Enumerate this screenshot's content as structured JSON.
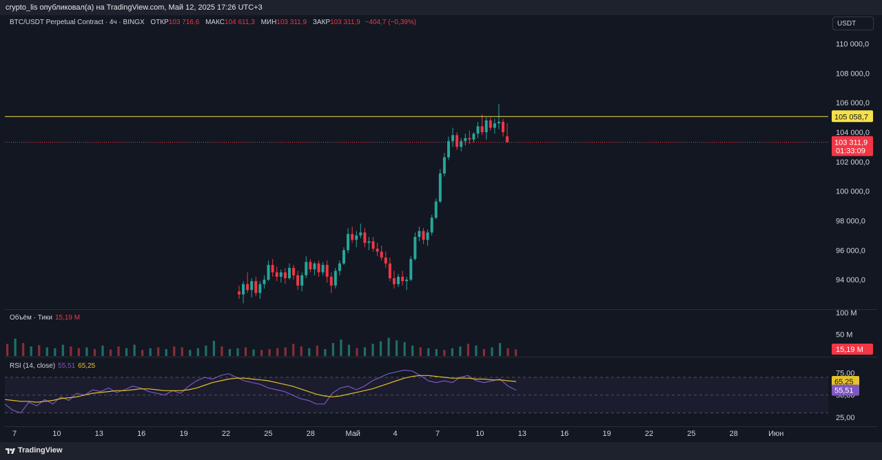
{
  "header": {
    "text": "crypto_lis опубликовал(а) на TradingView.com, Май 12, 2025 17:26 UTC+3"
  },
  "legend": {
    "symbol": "BTC/USDT Perpetual Contract · 4ч · BINGX",
    "open_label": "ОТКР",
    "open": "103 716,6",
    "high_label": "МАКС",
    "high": "104 611,3",
    "low_label": "МИН",
    "low": "103 311,9",
    "close_label": "ЗАКР",
    "close": "103 311,9",
    "change": "−404,7 (−0,39%)"
  },
  "currency_button": "USDT",
  "price_axis": {
    "ticks": [
      "110 000,0",
      "108 000,0",
      "106 000,0",
      "104 000,0",
      "102 000,0",
      "100 000,0",
      "98 000,0",
      "96 000,0",
      "94 000,0"
    ],
    "tick_values": [
      110000,
      108000,
      106000,
      104000,
      102000,
      100000,
      98000,
      96000,
      94000
    ],
    "level_label": "105 058,7",
    "level_value": 105058.7,
    "last_price_label": "103 311,9",
    "last_price_value": 103311.9,
    "countdown": "01:33:09"
  },
  "volume": {
    "legend_label": "Объём · Тики",
    "legend_value": "15,19 M",
    "axis_ticks": [
      "100 M",
      "50 M"
    ],
    "axis_values": [
      100,
      50
    ],
    "last_label": "15,19 M"
  },
  "rsi": {
    "legend_label": "RSI (14, close)",
    "rsi_value": "55,51",
    "ma_value": "65,25",
    "axis_ticks": [
      "75,00",
      "50,00",
      "25,00"
    ],
    "axis_values": [
      75,
      50,
      25
    ]
  },
  "time_axis": {
    "labels": [
      "7",
      "10",
      "13",
      "16",
      "19",
      "22",
      "25",
      "28",
      "Май",
      "4",
      "7",
      "10",
      "13",
      "16",
      "19",
      "22",
      "25",
      "28",
      "Июн"
    ]
  },
  "footer": {
    "brand": "TradingView"
  },
  "colors": {
    "up": "#26a69a",
    "down": "#f23645",
    "level": "#f5e14a",
    "rsi": "#7e57c2",
    "rsi_ma": "#e6c229",
    "bg": "#131722"
  },
  "chart_data": {
    "type": "candlestick",
    "interval": "4h",
    "price_range": [
      92000,
      111000
    ],
    "volume_range": [
      0,
      100
    ],
    "rsi_range": [
      15,
      90
    ],
    "candles_ohlc": [
      [
        93200,
        93600,
        92700,
        93000
      ],
      [
        93000,
        93900,
        92400,
        93700
      ],
      [
        93700,
        94500,
        93100,
        93300
      ],
      [
        93300,
        94100,
        92800,
        93900
      ],
      [
        93900,
        94200,
        92900,
        93100
      ],
      [
        93100,
        93900,
        92700,
        93700
      ],
      [
        93700,
        94300,
        93400,
        94000
      ],
      [
        94000,
        95300,
        93900,
        95000
      ],
      [
        95000,
        95400,
        94200,
        94500
      ],
      [
        94500,
        94900,
        93900,
        94200
      ],
      [
        94200,
        94700,
        93800,
        94500
      ],
      [
        94500,
        94800,
        93700,
        94100
      ],
      [
        94100,
        95100,
        94000,
        94800
      ],
      [
        94800,
        95000,
        94000,
        94300
      ],
      [
        94300,
        94600,
        93300,
        93600
      ],
      [
        93600,
        94500,
        93200,
        94300
      ],
      [
        94300,
        95600,
        94100,
        95200
      ],
      [
        95200,
        95400,
        94500,
        94700
      ],
      [
        94700,
        95200,
        94300,
        95100
      ],
      [
        95100,
        95300,
        94200,
        94500
      ],
      [
        94500,
        95200,
        94300,
        95000
      ],
      [
        95000,
        95300,
        93800,
        94200
      ],
      [
        94200,
        94500,
        93100,
        93600
      ],
      [
        93600,
        94800,
        93400,
        94600
      ],
      [
        94600,
        95300,
        94300,
        95100
      ],
      [
        95100,
        96200,
        95000,
        96000
      ],
      [
        96000,
        97500,
        95800,
        97100
      ],
      [
        97100,
        97600,
        96500,
        96700
      ],
      [
        96700,
        97300,
        96200,
        97000
      ],
      [
        97000,
        97800,
        96800,
        97200
      ],
      [
        97200,
        97500,
        96200,
        96500
      ],
      [
        96500,
        96900,
        96000,
        96600
      ],
      [
        96600,
        96900,
        95900,
        96100
      ],
      [
        96100,
        96500,
        95600,
        95900
      ],
      [
        95900,
        96300,
        95300,
        95500
      ],
      [
        95500,
        95900,
        94800,
        95100
      ],
      [
        95100,
        95500,
        93900,
        94100
      ],
      [
        94100,
        94600,
        93400,
        93700
      ],
      [
        93700,
        94400,
        93500,
        94200
      ],
      [
        94200,
        94600,
        93600,
        93900
      ],
      [
        93900,
        94200,
        93300,
        94000
      ],
      [
        94000,
        95600,
        93900,
        95400
      ],
      [
        95400,
        97200,
        95300,
        96900
      ],
      [
        96900,
        97600,
        96600,
        97300
      ],
      [
        97300,
        97500,
        96400,
        96700
      ],
      [
        96700,
        97400,
        96300,
        97200
      ],
      [
        97200,
        98400,
        97000,
        98200
      ],
      [
        98200,
        99500,
        98100,
        99300
      ],
      [
        99300,
        101500,
        99200,
        101200
      ],
      [
        101200,
        102600,
        101000,
        102300
      ],
      [
        102300,
        103700,
        102100,
        103400
      ],
      [
        103400,
        104300,
        103000,
        103800
      ],
      [
        103800,
        104000,
        102800,
        103000
      ],
      [
        103000,
        103600,
        102700,
        103400
      ],
      [
        103400,
        103900,
        103100,
        103600
      ],
      [
        103600,
        104100,
        103200,
        103500
      ],
      [
        103500,
        104000,
        103300,
        103900
      ],
      [
        103900,
        104700,
        103600,
        104400
      ],
      [
        104400,
        105200,
        103800,
        104000
      ],
      [
        104000,
        105000,
        103500,
        104800
      ],
      [
        104800,
        105000,
        104100,
        104300
      ],
      [
        104300,
        104900,
        103900,
        104600
      ],
      [
        104600,
        105900,
        104200,
        104700
      ],
      [
        104700,
        104900,
        103700,
        104000
      ],
      [
        103716.6,
        104611.3,
        103311.9,
        103311.9
      ]
    ],
    "volumes_m": [
      28,
      40,
      30,
      22,
      25,
      20,
      18,
      26,
      22,
      18,
      20,
      16,
      24,
      15,
      22,
      18,
      26,
      14,
      18,
      20,
      16,
      22,
      20,
      14,
      18,
      24,
      35,
      22,
      16,
      18,
      20,
      15,
      14,
      16,
      18,
      20,
      28,
      22,
      18,
      24,
      16,
      30,
      38,
      26,
      18,
      20,
      28,
      34,
      42,
      36,
      32,
      24,
      20,
      18,
      16,
      14,
      18,
      22,
      28,
      24,
      16,
      20,
      30,
      18,
      15.19
    ],
    "rsi_values": [
      40,
      33,
      30,
      42,
      38,
      45,
      40,
      48,
      44,
      52,
      50,
      56,
      54,
      58,
      53,
      56,
      60,
      58,
      54,
      52,
      50,
      55,
      52,
      60,
      66,
      70,
      68,
      72,
      74,
      70,
      66,
      64,
      62,
      58,
      56,
      54,
      50,
      46,
      44,
      40,
      40,
      52,
      58,
      60,
      56,
      60,
      66,
      70,
      74,
      76,
      78,
      77,
      72,
      66,
      64,
      66,
      64,
      70,
      72,
      66,
      64,
      66,
      68,
      60,
      55.51
    ],
    "rsi_ma_values": [
      45,
      44,
      43,
      43,
      42,
      43,
      44,
      46,
      47,
      48,
      50,
      52,
      53,
      54,
      55,
      55,
      56,
      57,
      57,
      56,
      55,
      55,
      55,
      56,
      58,
      61,
      64,
      66,
      68,
      69,
      69,
      68,
      67,
      66,
      64,
      62,
      60,
      57,
      54,
      51,
      49,
      48,
      49,
      51,
      53,
      55,
      57,
      60,
      63,
      66,
      69,
      71,
      72,
      72,
      71,
      70,
      69,
      69,
      69,
      68,
      68,
      67,
      67,
      66,
      65.25
    ]
  }
}
